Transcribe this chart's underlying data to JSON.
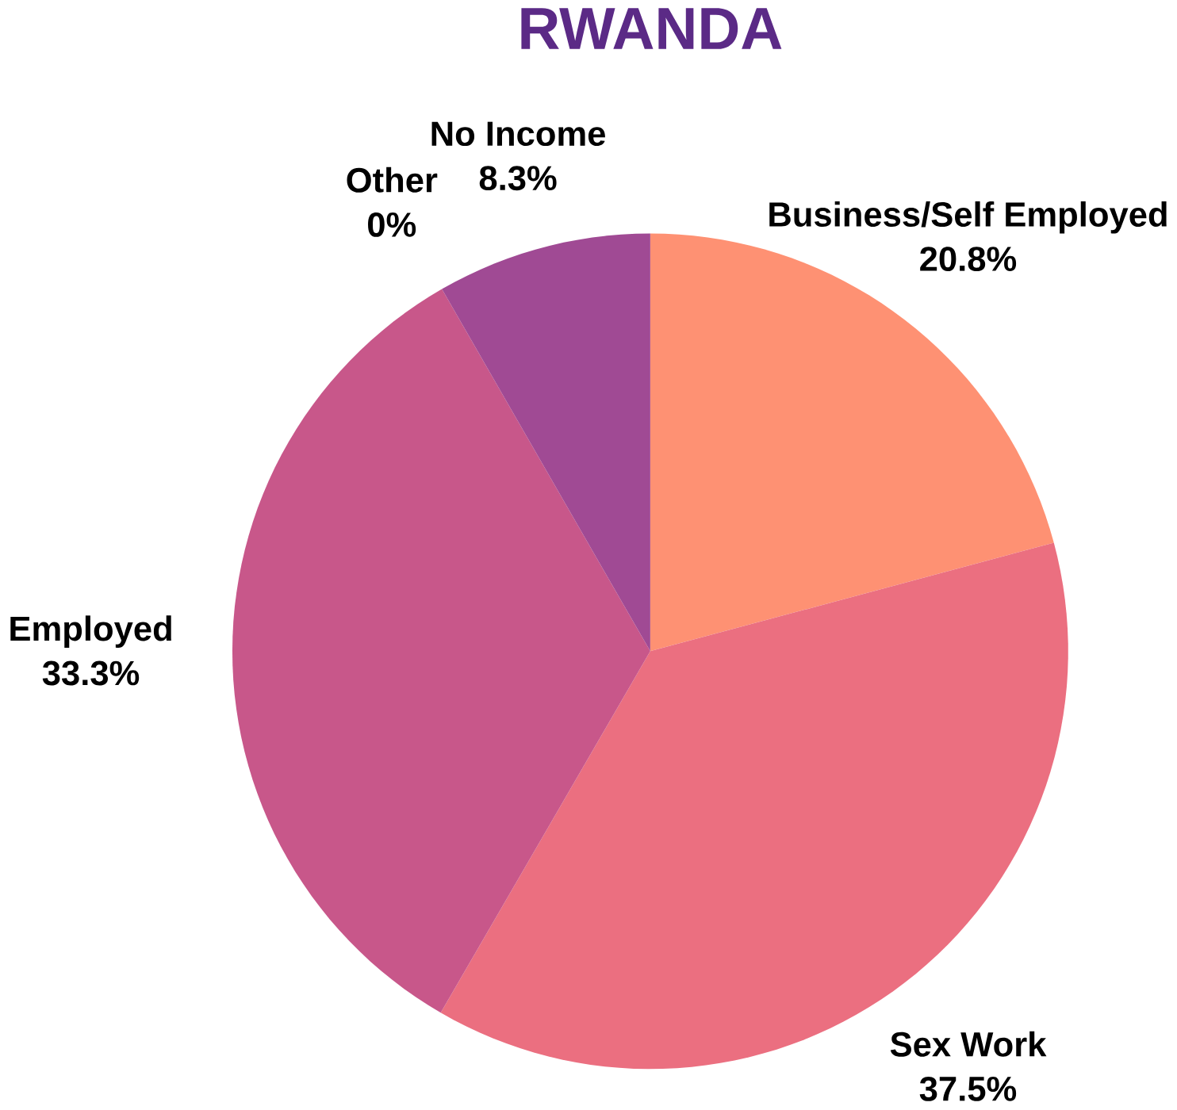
{
  "chart_data": {
    "type": "pie",
    "title": "RWANDA",
    "categories": [
      "Business/Self Employed",
      "Sex Work",
      "Employed",
      "Other",
      "No Income"
    ],
    "values": [
      20.8,
      37.5,
      33.3,
      0,
      8.3
    ],
    "value_labels": [
      "20.8%",
      "37.5%",
      "33.3%",
      "0%",
      "8.3%"
    ],
    "colors": [
      "#fe9173",
      "#eb6f80",
      "#c8578a",
      "#b4508f",
      "#a04a94"
    ]
  }
}
